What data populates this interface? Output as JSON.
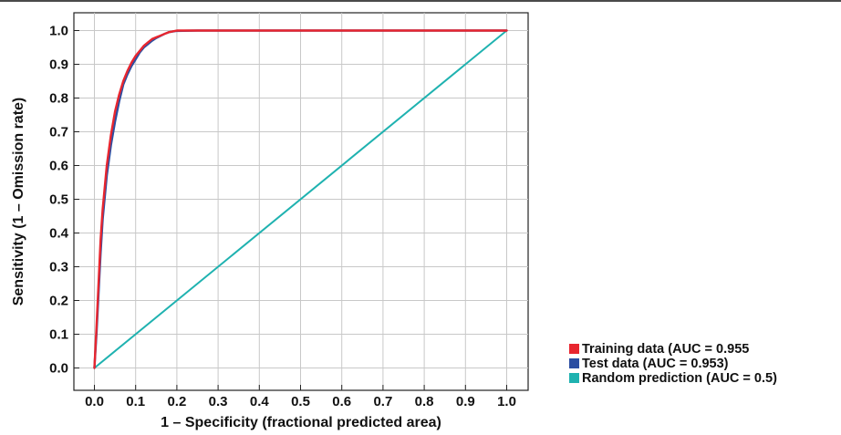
{
  "chart_data": {
    "type": "line",
    "title": "",
    "xlabel": "1 – Specificity (fractional predicted area)",
    "ylabel": "Sensitivity (1 – Omission rate)",
    "xlim": [
      0,
      1
    ],
    "ylim": [
      0,
      1
    ],
    "grid": true,
    "legend_position": "bottom-right outside",
    "x_ticks": [
      "0.0",
      "0.1",
      "0.2",
      "0.3",
      "0.4",
      "0.5",
      "0.6",
      "0.7",
      "0.8",
      "0.9",
      "1.0"
    ],
    "y_ticks": [
      "0.0",
      "0.1",
      "0.2",
      "0.3",
      "0.4",
      "0.5",
      "0.6",
      "0.7",
      "0.8",
      "0.9",
      "1.0"
    ],
    "series": [
      {
        "name": "Training data (AUC = 0.955",
        "color": "#e8262f",
        "x": [
          0,
          0.005,
          0.01,
          0.015,
          0.02,
          0.03,
          0.04,
          0.05,
          0.06,
          0.07,
          0.08,
          0.09,
          0.1,
          0.11,
          0.12,
          0.13,
          0.14,
          0.15,
          0.16,
          0.17,
          0.18,
          0.2,
          0.25,
          1.0
        ],
        "y": [
          0,
          0.12,
          0.25,
          0.38,
          0.47,
          0.6,
          0.69,
          0.76,
          0.81,
          0.85,
          0.88,
          0.905,
          0.925,
          0.94,
          0.955,
          0.965,
          0.975,
          0.98,
          0.985,
          0.99,
          0.995,
          1.0,
          1.0,
          1.0
        ]
      },
      {
        "name": "Test data (AUC = 0.953)",
        "color": "#2b4ea2",
        "x": [
          0,
          0.005,
          0.01,
          0.015,
          0.02,
          0.03,
          0.04,
          0.05,
          0.06,
          0.07,
          0.08,
          0.09,
          0.1,
          0.11,
          0.12,
          0.13,
          0.14,
          0.15,
          0.16,
          0.17,
          0.18,
          0.2,
          0.25,
          1.0
        ],
        "y": [
          0,
          0.1,
          0.22,
          0.34,
          0.44,
          0.57,
          0.66,
          0.73,
          0.79,
          0.84,
          0.87,
          0.895,
          0.915,
          0.935,
          0.95,
          0.96,
          0.97,
          0.978,
          0.984,
          0.99,
          0.995,
          0.999,
          1.0,
          1.0
        ]
      },
      {
        "name": "Random prediction (AUC = 0.5)",
        "color": "#1fb2b0",
        "x": [
          0,
          1
        ],
        "y": [
          0,
          1
        ]
      }
    ]
  }
}
